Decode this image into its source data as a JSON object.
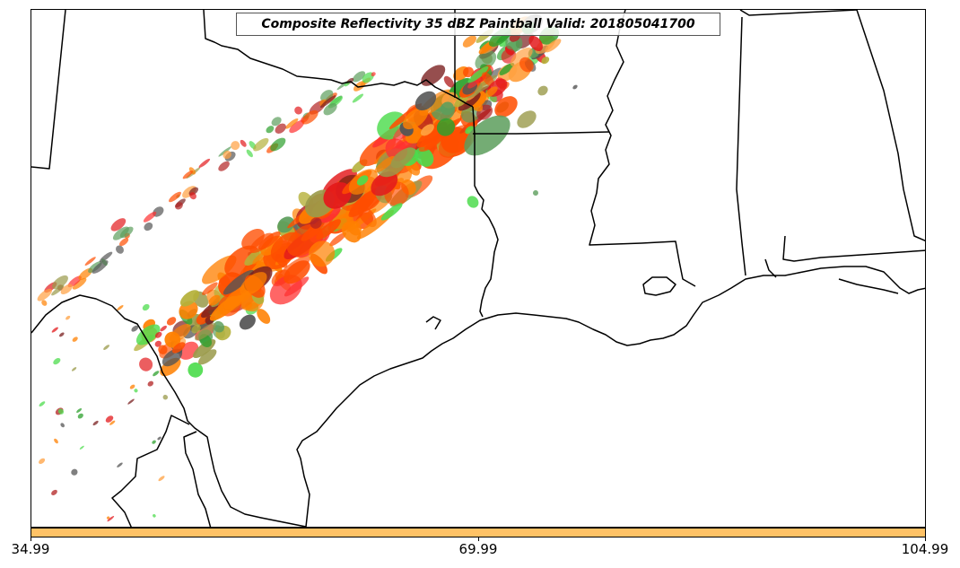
{
  "title": "Composite Reflectivity 35 dBZ Paintball Valid: 201805041700",
  "colorbar": {
    "color": "#ffc266",
    "ticks": [
      "34.99",
      "69.99",
      "104.99"
    ]
  },
  "colors": {
    "state_lines": "#000000",
    "paintball_members": [
      "#ff8000",
      "#ff4d00",
      "#ff3030",
      "#e31a1c",
      "#b22222",
      "#7a1f1f",
      "#2ca02c",
      "#4ddc4d",
      "#5c9e5c",
      "#b5b03a",
      "#9a9a4a",
      "#ffa040",
      "#555555"
    ]
  }
}
